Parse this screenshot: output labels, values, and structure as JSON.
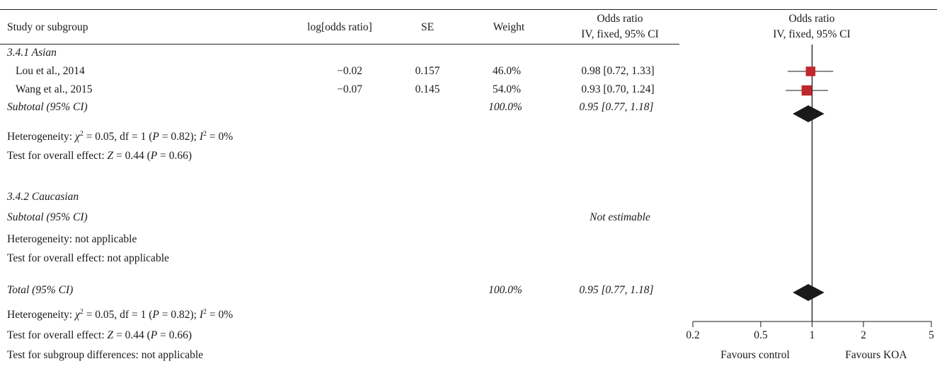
{
  "columns": {
    "study": "Study or subgroup",
    "logor": "log[odds ratio]",
    "se": "SE",
    "weight": "Weight",
    "or_line1": "Odds ratio",
    "or_line2": "IV, fixed, 95% CI",
    "plot_line1": "Odds ratio",
    "plot_line2": "IV, fixed, 95% CI"
  },
  "subgroups": [
    {
      "title": "3.4.1 Asian",
      "studies": [
        {
          "name": "Lou et al., 2014",
          "logor": "−0.02",
          "se": "0.157",
          "weight": "46.0%",
          "ci_text": "0.98 [0.72, 1.33]"
        },
        {
          "name": "Wang et al., 2015",
          "logor": "−0.07",
          "se": "0.145",
          "weight": "54.0%",
          "ci_text": "0.93 [0.70, 1.24]"
        }
      ],
      "subtotal_label": "Subtotal (95% CI)",
      "subtotal_weight": "100.0%",
      "subtotal_ci": "0.95 [0.77, 1.18]",
      "heterogeneity": {
        "prefix": "Heterogeneity: ",
        "chi": "χ",
        "chi_sup": "2",
        "mid": " = 0.05, df = 1 (",
        "p": "P",
        "p_rest": " = 0.82); ",
        "i": "I",
        "i_sup": "2",
        "i_rest": " = 0%"
      },
      "overall": {
        "prefix": "Test for overall effect: ",
        "z": "Z",
        "z_rest": " = 0.44 (",
        "p": "P",
        "p_rest": " = 0.66)"
      }
    },
    {
      "title": "3.4.2 Caucasian",
      "subtotal_label": "Subtotal (95% CI)",
      "subtotal_ci": "Not estimable",
      "heterogeneity_text": "Heterogeneity: not applicable",
      "overall_text": "Test for overall effect: not applicable"
    }
  ],
  "total": {
    "label": "Total (95% CI)",
    "weight": "100.0%",
    "ci": "0.95 [0.77, 1.18]",
    "heterogeneity": {
      "prefix": "Heterogeneity: ",
      "chi": "χ",
      "chi_sup": "2",
      "mid": " = 0.05, df = 1 (",
      "p": "P",
      "p_rest": " = 0.82); ",
      "i": "I",
      "i_sup": "2",
      "i_rest": " = 0%"
    },
    "overall": {
      "prefix": "Test for overall effect: ",
      "z": "Z",
      "z_rest": " = 0.44 (",
      "p": "P",
      "p_rest": " = 0.66)"
    },
    "subgroup_diff": "Test for subgroup differences: not applicable"
  },
  "chart_data": {
    "type": "forest",
    "x_scale": "log",
    "xlim": [
      0.2,
      5
    ],
    "ticks": [
      0.2,
      0.5,
      1,
      2,
      5
    ],
    "tick_labels": [
      "0.2",
      "0.5",
      "1",
      "2",
      "5"
    ],
    "null_line": 1,
    "left_label": "Favours control",
    "right_label": "Favours KOA",
    "studies": [
      {
        "name": "Lou et al., 2014",
        "or": 0.98,
        "lower": 0.72,
        "upper": 1.33,
        "weight": 46.0
      },
      {
        "name": "Wang et al., 2015",
        "or": 0.93,
        "lower": 0.7,
        "upper": 1.24,
        "weight": 54.0
      }
    ],
    "diamonds": [
      {
        "name": "Subtotal (95% CI)",
        "or": 0.95,
        "lower": 0.77,
        "upper": 1.18
      },
      {
        "name": "Total (95% CI)",
        "or": 0.95,
        "lower": 0.77,
        "upper": 1.18
      }
    ],
    "colors": {
      "square": "#c0272d",
      "diamond": "#1a1a1a",
      "line": "#1a1a1a"
    }
  }
}
